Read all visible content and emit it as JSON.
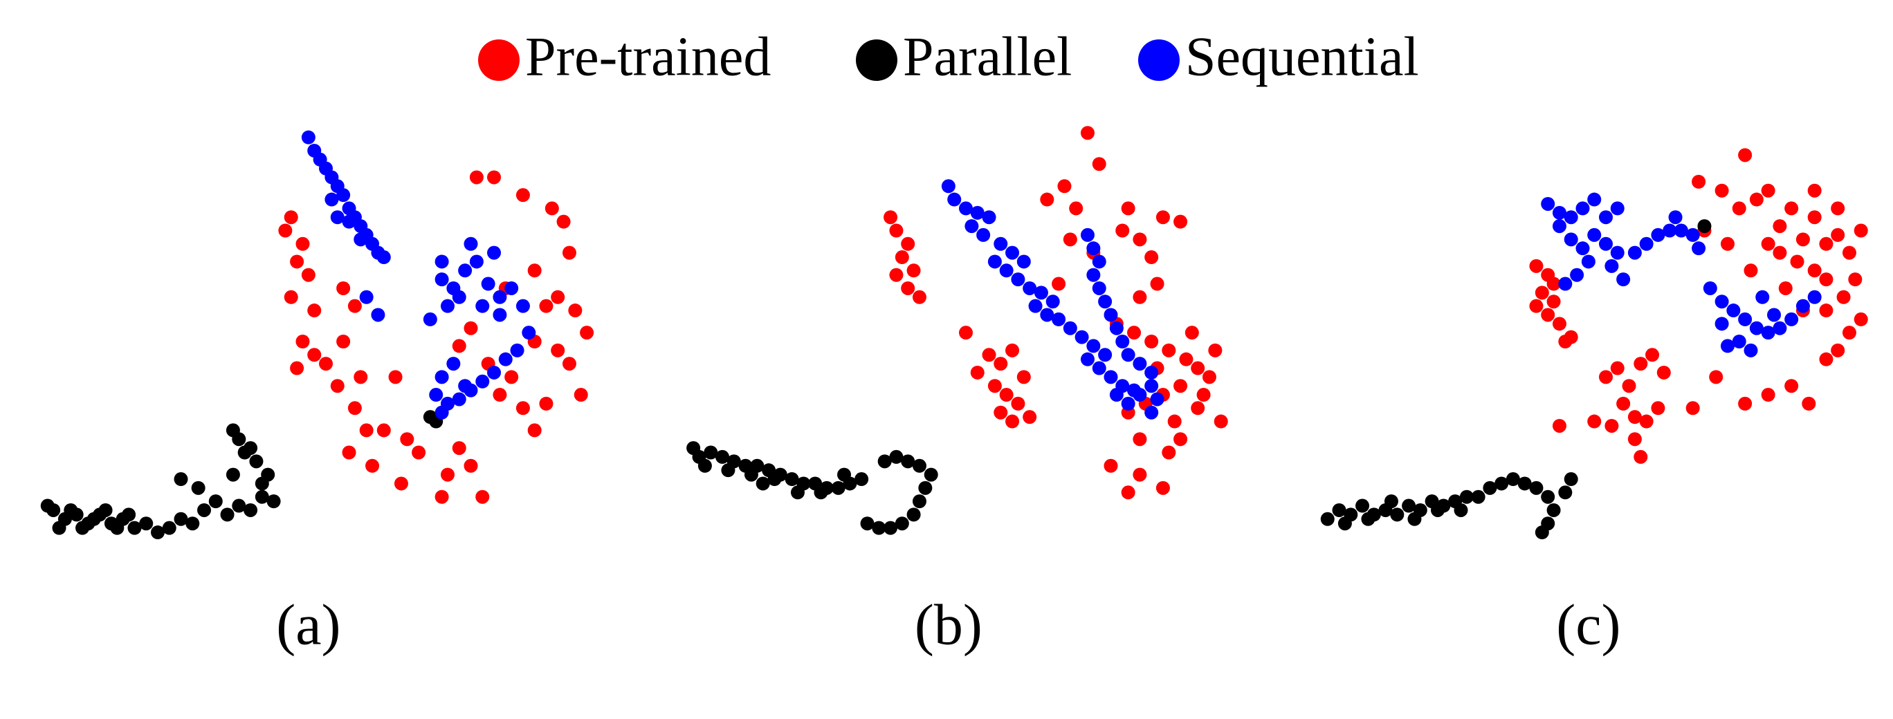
{
  "chart_data": [
    {
      "type": "scatter",
      "subtitle": "(a)",
      "xlim": [
        0,
        100
      ],
      "ylim": [
        0,
        100
      ],
      "series": [
        {
          "name": "Pre-trained",
          "color": "#ff0000",
          "x": [
            44,
            43,
            46,
            45,
            47,
            44,
            48,
            46,
            48,
            45,
            50,
            53,
            55,
            53,
            56,
            52,
            55,
            57,
            54,
            58,
            62,
            60,
            64,
            66,
            63,
            70,
            71,
            73,
            75,
            77,
            76,
            79,
            84,
            89,
            92,
            90,
            88,
            93,
            95,
            90,
            86,
            92,
            94,
            88,
            84,
            80,
            78,
            82,
            86,
            73,
            75,
            81,
            86,
            91
          ],
          "y": [
            78,
            75,
            72,
            68,
            65,
            60,
            57,
            50,
            47,
            44,
            45,
            62,
            58,
            50,
            42,
            40,
            35,
            30,
            25,
            22,
            42,
            30,
            28,
            25,
            18,
            15,
            20,
            26,
            22,
            15,
            87,
            87,
            83,
            80,
            70,
            60,
            58,
            57,
            52,
            48,
            50,
            45,
            38,
            36,
            35,
            38,
            45,
            42,
            30,
            49,
            53,
            62,
            66,
            77
          ]
        },
        {
          "name": "Parallel",
          "color": "#000000",
          "x": [
            3,
            5,
            7,
            9,
            11,
            13,
            15,
            17,
            19,
            21,
            23,
            25,
            27,
            29,
            31,
            33,
            35,
            37,
            39,
            40,
            38,
            36,
            35,
            34,
            37,
            39,
            28,
            25,
            34,
            41,
            2,
            4,
            6,
            8,
            10,
            12,
            14,
            16,
            69,
            68
          ],
          "y": [
            12,
            10,
            11,
            9,
            11,
            9,
            10,
            8,
            9,
            7,
            8,
            10,
            9,
            12,
            14,
            11,
            13,
            12,
            15,
            20,
            23,
            25,
            28,
            30,
            26,
            18,
            17,
            19,
            20,
            14,
            13,
            8,
            12,
            8,
            10,
            12,
            8,
            11,
            32,
            33
          ]
        },
        {
          "name": "Sequential",
          "color": "#0000ff",
          "x": [
            47,
            48,
            49,
            50,
            51,
            52,
            53,
            51,
            54,
            52,
            55,
            56,
            57,
            58,
            59,
            60,
            56,
            54,
            57,
            59,
            70,
            72,
            74,
            76,
            78,
            80,
            82,
            79,
            75,
            73,
            71,
            77,
            80,
            84,
            70,
            68,
            85,
            83,
            81,
            79,
            77,
            75,
            73,
            71,
            69,
            70,
            72,
            74,
            70
          ],
          "y": [
            96,
            93,
            91,
            89,
            87,
            85,
            83,
            82,
            80,
            78,
            78,
            76,
            74,
            72,
            70,
            69,
            73,
            77,
            60,
            56,
            64,
            62,
            66,
            68,
            63,
            60,
            62,
            70,
            72,
            60,
            58,
            58,
            56,
            58,
            68,
            55,
            52,
            48,
            46,
            43,
            41,
            39,
            37,
            36,
            38,
            42,
            45,
            40,
            34
          ]
        }
      ]
    },
    {
      "type": "scatter",
      "subtitle": "(b)",
      "xlim": [
        0,
        100
      ],
      "ylim": [
        0,
        100
      ],
      "series": [
        {
          "name": "Pre-trained",
          "color": "#ff0000",
          "x": [
            37,
            38,
            40,
            39,
            41,
            38,
            40,
            42,
            54,
            56,
            58,
            55,
            57,
            59,
            60,
            56,
            58,
            61,
            52,
            50,
            71,
            73,
            64,
            67,
            69,
            78,
            84,
            77,
            80,
            82,
            87,
            68,
            72,
            66,
            83,
            80,
            76,
            79,
            82,
            85,
            88,
            90,
            92,
            87,
            84,
            81,
            78,
            86,
            90,
            94,
            93,
            89,
            91,
            83,
            87,
            80,
            75,
            80,
            84,
            78,
            85
          ],
          "y": [
            78,
            75,
            72,
            69,
            66,
            65,
            62,
            60,
            47,
            45,
            48,
            40,
            38,
            36,
            42,
            34,
            32,
            33,
            43,
            52,
            97,
            90,
            82,
            85,
            80,
            80,
            78,
            75,
            73,
            69,
            77,
            73,
            70,
            63,
            63,
            60,
            54,
            52,
            50,
            48,
            46,
            44,
            42,
            40,
            38,
            36,
            34,
            32,
            35,
            32,
            48,
            52,
            38,
            44,
            28,
            28,
            22,
            20,
            17,
            16,
            25
          ]
        },
        {
          "name": "Parallel",
          "color": "#000000",
          "x": [
            3,
            4,
            6,
            8,
            10,
            12,
            14,
            16,
            18,
            20,
            22,
            24,
            26,
            28,
            30,
            32,
            5,
            9,
            13,
            17,
            21,
            25,
            29,
            36,
            38,
            40,
            42,
            44,
            43,
            42,
            41,
            39,
            37,
            35,
            33,
            15
          ],
          "y": [
            26,
            24,
            25,
            24,
            23,
            22,
            22,
            21,
            20,
            19,
            18,
            18,
            17,
            17,
            18,
            19,
            22,
            21,
            20,
            19,
            16,
            16,
            20,
            23,
            24,
            23,
            22,
            20,
            17,
            14,
            11,
            9,
            8,
            8,
            9,
            18
          ]
        },
        {
          "name": "Sequential",
          "color": "#0000ff",
          "x": [
            47,
            48,
            50,
            52,
            54,
            51,
            53,
            56,
            58,
            60,
            55,
            57,
            59,
            61,
            63,
            65,
            62,
            64,
            66,
            68,
            70,
            72,
            74,
            71,
            73,
            75,
            77,
            79,
            76,
            78,
            80,
            82,
            71,
            72,
            73,
            72,
            73,
            74,
            75,
            76,
            77,
            78,
            80,
            82,
            83,
            82
          ],
          "y": [
            85,
            82,
            80,
            79,
            78,
            76,
            74,
            72,
            70,
            68,
            68,
            66,
            64,
            62,
            61,
            59,
            58,
            56,
            55,
            53,
            51,
            49,
            47,
            46,
            44,
            42,
            40,
            39,
            38,
            36,
            38,
            40,
            74,
            71,
            68,
            65,
            62,
            59,
            56,
            53,
            50,
            47,
            45,
            43,
            37,
            34
          ]
        }
      ]
    },
    {
      "type": "scatter",
      "subtitle": "(c)",
      "xlim": [
        0,
        100
      ],
      "ylim": [
        0,
        100
      ],
      "series": [
        {
          "name": "Pre-trained",
          "color": "#ff0000",
          "x": [
            38,
            40,
            39,
            41,
            40,
            42,
            44,
            38,
            41,
            43,
            50,
            52,
            54,
            56,
            58,
            60,
            53,
            55,
            57,
            51,
            55,
            48,
            42,
            56,
            59,
            65,
            69,
            74,
            78,
            82,
            85,
            88,
            90,
            92,
            94,
            91,
            88,
            86,
            83,
            80,
            78,
            84,
            88,
            92,
            90,
            86,
            82,
            78,
            76,
            73,
            70,
            66,
            74,
            80,
            90,
            93,
            84,
            81,
            75,
            71,
            67,
            88,
            94,
            86
          ],
          "y": [
            67,
            65,
            61,
            59,
            56,
            54,
            51,
            58,
            63,
            50,
            42,
            44,
            40,
            45,
            47,
            43,
            36,
            33,
            32,
            31,
            28,
            32,
            31,
            24,
            35,
            35,
            42,
            36,
            38,
            40,
            36,
            46,
            48,
            52,
            55,
            60,
            64,
            66,
            68,
            70,
            72,
            73,
            72,
            70,
            74,
            78,
            80,
            84,
            82,
            80,
            84,
            86,
            92,
            76,
            80,
            64,
            57,
            62,
            66,
            72,
            75,
            57,
            75,
            84
          ]
        },
        {
          "name": "Parallel",
          "color": "#000000",
          "x": [
            2,
            4,
            6,
            8,
            10,
            12,
            14,
            16,
            18,
            20,
            22,
            24,
            26,
            28,
            5,
            9,
            13,
            17,
            21,
            25,
            30,
            32,
            34,
            36,
            38,
            40,
            41,
            40,
            39,
            43,
            44,
            67
          ],
          "y": [
            10,
            12,
            11,
            13,
            11,
            12,
            11,
            13,
            12,
            14,
            13,
            14,
            15,
            15,
            9,
            10,
            14,
            10,
            12,
            12,
            17,
            18,
            19,
            18,
            17,
            15,
            12,
            9,
            7,
            16,
            19,
            76
          ]
        },
        {
          "name": "Sequential",
          "color": "#0000ff",
          "x": [
            40,
            42,
            44,
            46,
            48,
            50,
            42,
            44,
            46,
            48,
            50,
            52,
            47,
            45,
            43,
            51,
            53,
            55,
            57,
            59,
            61,
            63,
            65,
            66,
            62,
            52,
            68,
            70,
            72,
            74,
            76,
            78,
            80,
            82,
            84,
            86,
            73,
            71,
            75,
            79,
            77,
            70
          ],
          "y": [
            81,
            79,
            78,
            80,
            82,
            78,
            76,
            73,
            71,
            74,
            72,
            70,
            68,
            65,
            63,
            67,
            64,
            70,
            72,
            74,
            75,
            75,
            74,
            71,
            78,
            80,
            62,
            59,
            57,
            55,
            53,
            52,
            53,
            55,
            58,
            60,
            50,
            49,
            48,
            56,
            60,
            54
          ]
        }
      ]
    }
  ]
}
